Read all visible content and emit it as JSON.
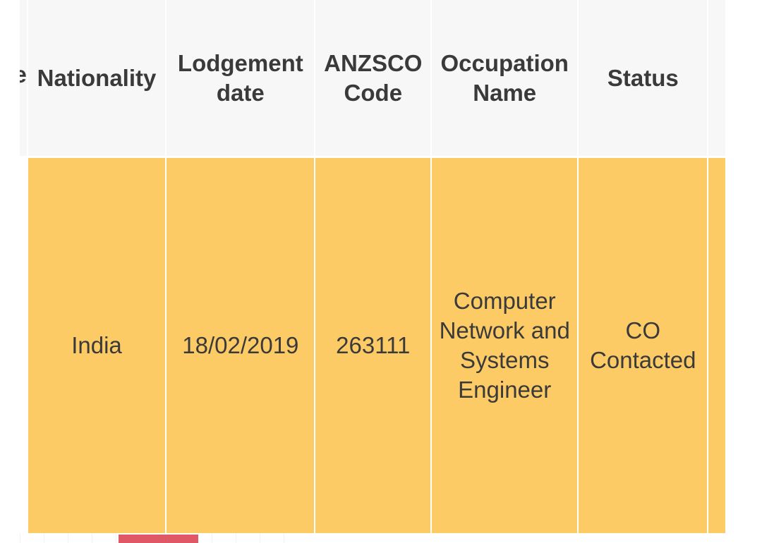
{
  "table": {
    "headers": {
      "cut": "e",
      "nationality": "Nationality",
      "lodgement_date": "Lodgement date",
      "anzsco_code": "ANZSCO Code",
      "occupation_name": "Occupation Name",
      "status": "Status"
    },
    "row": {
      "nationality": "India",
      "lodgement_date": "18/02/2019",
      "anzsco_code": "263111",
      "occupation_name": "Computer Network and Systems Engineer",
      "status": "CO Contacted"
    }
  },
  "colors": {
    "header_bg": "#f7f7f7",
    "row_bg": "#fdcb65",
    "text": "#3a3a3a",
    "scroll_thumb": "#df5865"
  }
}
